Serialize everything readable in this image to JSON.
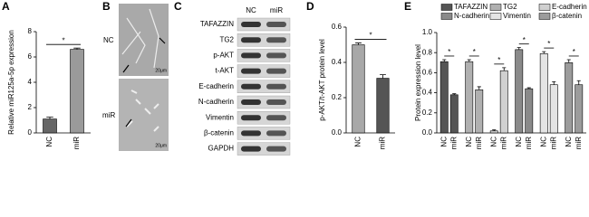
{
  "panels": [
    "A",
    "B",
    "C",
    "D",
    "E"
  ],
  "panel_b": {
    "labels": [
      "NC",
      "miR"
    ],
    "scale_bar": "20μm"
  },
  "panel_c": {
    "columns": [
      "NC",
      "miR"
    ],
    "rows": [
      "TAFAZZIN",
      "TG2",
      "p-AKT",
      "t-AKT",
      "E-cadherin",
      "N-cadherin",
      "Vimentin",
      "β-catenin",
      "GAPDH"
    ]
  },
  "chart_data": [
    {
      "type": "bar",
      "ylabel": "Relative miR125a-5p expression",
      "categories": [
        "NC",
        "miR"
      ],
      "values": [
        1.1,
        6.6
      ],
      "errors": [
        0.15,
        0.1
      ],
      "colors": [
        "#666666",
        "#9a9a9a"
      ],
      "ylim": [
        0,
        8
      ],
      "yticks": [
        0,
        2,
        4,
        6,
        8
      ],
      "annotation": "*"
    },
    {
      "type": "bar",
      "ylabel": "p-AKT/t-AKT protein level",
      "categories": [
        "NC",
        "miR"
      ],
      "values": [
        0.5,
        0.31
      ],
      "errors": [
        0.01,
        0.02
      ],
      "colors": [
        "#a8a8a8",
        "#555555"
      ],
      "ylim": [
        0,
        0.6
      ],
      "yticks": [
        {
          "value": 0,
          "label": "0.0"
        },
        0.2,
        0.4,
        0.6
      ],
      "annotation": "*"
    },
    {
      "type": "grouped_bar",
      "ylabel": "Protein expression level",
      "categories": [
        "NC",
        "miR"
      ],
      "ylim": [
        0,
        1
      ],
      "yticks": [
        {
          "value": 0,
          "label": "0.0"
        },
        0.2,
        0.4,
        0.6,
        0.8,
        {
          "value": 1,
          "label": "1.0"
        }
      ],
      "annotation": "*",
      "series": [
        {
          "name": "TAFAZZIN",
          "color": "#555555",
          "values": [
            0.71,
            0.38
          ],
          "errors": [
            0.02,
            0.01
          ]
        },
        {
          "name": "TG2",
          "color": "#b0b0b0",
          "values": [
            0.71,
            0.43
          ],
          "errors": [
            0.02,
            0.03
          ]
        },
        {
          "name": "E-cadherin",
          "color": "#d0d0d0",
          "values": [
            0.02,
            0.62
          ],
          "errors": [
            0.01,
            0.03
          ]
        },
        {
          "name": "N-cadherin",
          "color": "#8a8a8a",
          "values": [
            0.83,
            0.44
          ],
          "errors": [
            0.02,
            0.01
          ]
        },
        {
          "name": "Vimentin",
          "color": "#e4e4e4",
          "values": [
            0.79,
            0.48
          ],
          "errors": [
            0.02,
            0.03
          ]
        },
        {
          "name": "β-catenin",
          "color": "#9c9c9c",
          "values": [
            0.7,
            0.48
          ],
          "errors": [
            0.03,
            0.04
          ]
        }
      ]
    }
  ]
}
